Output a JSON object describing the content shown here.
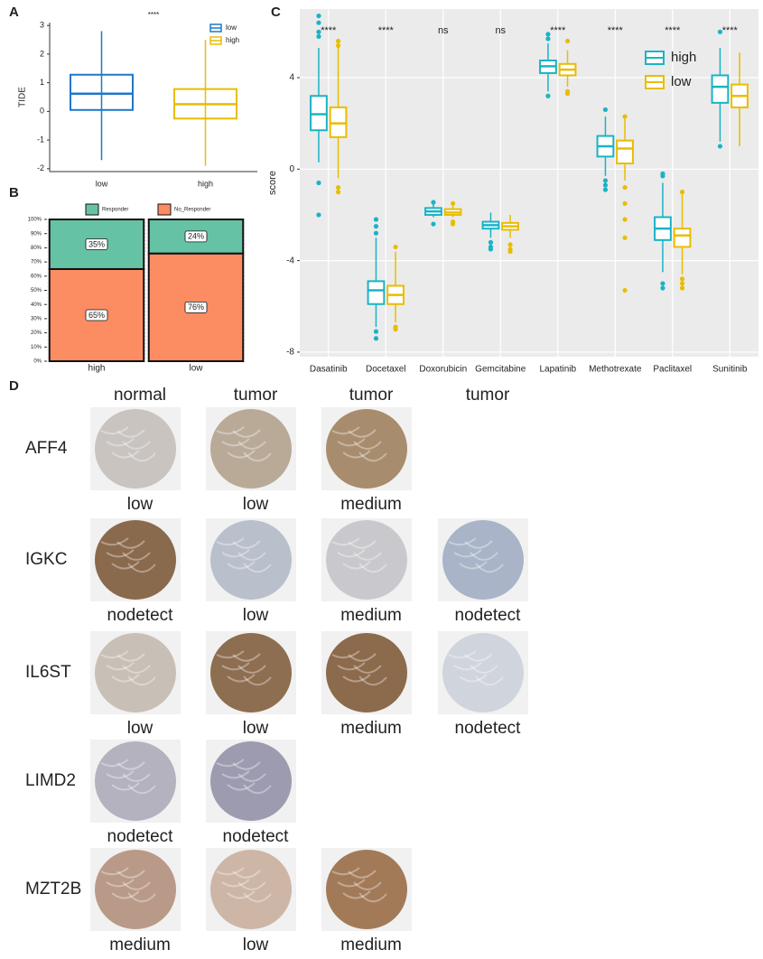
{
  "chart_data": [
    {
      "type": "box",
      "panel": "A",
      "ylabel": "TIDE",
      "annotation": "****",
      "dodge": false,
      "categories": [
        "low",
        "high"
      ],
      "series": [
        {
          "name": "low",
          "color": "#1f78c8",
          "values": [
            [
              -1.7,
              0.05,
              0.62,
              1.28,
              2.8
            ],
            null
          ],
          "outliers": [
            [],
            null
          ]
        },
        {
          "name": "high",
          "color": "#e8bd00",
          "values": [
            null,
            [
              -1.9,
              -0.25,
              0.25,
              0.78,
              2.5
            ]
          ],
          "outliers": [
            null,
            []
          ]
        }
      ],
      "ylim": [
        -2.1,
        3.1
      ],
      "yticks": [
        -2,
        -1,
        0,
        1,
        2,
        3
      ],
      "grid": false,
      "legend": "top-right"
    },
    {
      "type": "stacked_bar",
      "panel": "B",
      "categories": [
        "high",
        "low"
      ],
      "series": [
        {
          "name": "No_Responder",
          "color": "#fc8d62",
          "values": [
            65,
            76
          ],
          "value_labels": [
            "65%",
            "76%"
          ]
        },
        {
          "name": "Responder",
          "color": "#66c2a5",
          "values": [
            35,
            24
          ],
          "value_labels": [
            "35%",
            "24%"
          ]
        }
      ],
      "ylim": [
        0,
        100
      ],
      "yticks": [
        {
          "value": 0,
          "label": "0%"
        },
        {
          "value": 10,
          "label": "10%"
        },
        {
          "value": 20,
          "label": "20%"
        },
        {
          "value": 30,
          "label": "30%"
        },
        {
          "value": 40,
          "label": "40%"
        },
        {
          "value": 50,
          "label": "50%"
        },
        {
          "value": 60,
          "label": "60%"
        },
        {
          "value": 70,
          "label": "70%"
        },
        {
          "value": 80,
          "label": "80%"
        },
        {
          "value": 90,
          "label": "90%"
        },
        {
          "value": 100,
          "label": "100%"
        }
      ],
      "grid": true,
      "legend": "top"
    },
    {
      "type": "box",
      "panel": "C",
      "ylabel": "score",
      "dodge": true,
      "categories": [
        "Dasatinib",
        "Docetaxel",
        "Doxorubicin",
        "Gemcitabine",
        "Lapatinib",
        "Methotrexate",
        "Paclitaxel",
        "Sunitinib"
      ],
      "annotations": [
        "****",
        "****",
        "ns",
        "ns",
        "****",
        "****",
        "****",
        "****"
      ],
      "series": [
        {
          "name": "high",
          "color": "#1ab3c6",
          "values": [
            [
              0.3,
              1.7,
              2.4,
              3.2,
              5.3
            ],
            [
              -6.9,
              -5.9,
              -5.3,
              -4.9,
              -3.0
            ],
            [
              -2.1,
              -2.0,
              -1.85,
              -1.7,
              -1.5
            ],
            [
              -3.0,
              -2.6,
              -2.45,
              -2.3,
              -1.9
            ],
            [
              3.4,
              4.2,
              4.5,
              4.75,
              5.5
            ],
            [
              -0.3,
              0.55,
              1.0,
              1.45,
              2.3
            ],
            [
              -4.5,
              -3.1,
              -2.6,
              -2.1,
              -0.6
            ],
            [
              1.2,
              2.9,
              3.6,
              4.1,
              5.3
            ]
          ],
          "outliers": [
            [
              6.7,
              6.4,
              6.0,
              5.8,
              -0.6,
              -2.0
            ],
            [
              -2.2,
              -2.5,
              -2.8,
              -7.1,
              -7.4
            ],
            [
              -2.4,
              -1.45
            ],
            [
              -3.2,
              -3.4,
              -3.5
            ],
            [
              5.9,
              5.7,
              3.2
            ],
            [
              2.6,
              -0.5,
              -0.7,
              -0.9
            ],
            [
              -0.2,
              -0.3,
              -5.0,
              -5.2
            ],
            [
              6.0,
              1.0
            ]
          ]
        },
        {
          "name": "low",
          "color": "#e8bd00",
          "values": [
            [
              -0.4,
              1.4,
              2.0,
              2.7,
              5.3
            ],
            [
              -6.7,
              -5.9,
              -5.5,
              -5.1,
              -3.6
            ],
            [
              -2.1,
              -2.0,
              -1.9,
              -1.75,
              -1.6
            ],
            [
              -3.0,
              -2.65,
              -2.5,
              -2.35,
              -2.0
            ],
            [
              3.6,
              4.1,
              4.35,
              4.6,
              5.2
            ],
            [
              -0.5,
              0.25,
              0.9,
              1.25,
              2.2
            ],
            [
              -4.6,
              -3.4,
              -2.9,
              -2.6,
              -1.1
            ],
            [
              1.0,
              2.7,
              3.2,
              3.7,
              5.1
            ]
          ],
          "outliers": [
            [
              5.6,
              5.4,
              -0.8,
              -1.0
            ],
            [
              -3.4,
              -6.9,
              -7.0
            ],
            [
              -2.3,
              -2.4,
              -1.5
            ],
            [
              -3.3,
              -3.5,
              -3.6
            ],
            [
              5.6,
              3.4,
              3.3
            ],
            [
              2.3,
              -0.8,
              -1.5,
              -2.2,
              -3.0,
              -5.3
            ],
            [
              -1.0,
              -4.8,
              -5.0,
              -5.2
            ],
            []
          ]
        }
      ],
      "ylim": [
        -8.2,
        7.0
      ],
      "yticks": [
        -8,
        -4,
        0,
        4
      ],
      "grid": true,
      "legend": "top-right"
    }
  ],
  "panel_d": {
    "label": "D",
    "columns": [
      "normal",
      "tumor",
      "tumor",
      "tumor"
    ],
    "rows": [
      {
        "gene": "AFF4",
        "cells": [
          {
            "level": "low",
            "color": "#c9c4c0"
          },
          {
            "level": "low",
            "color": "#b9aa98"
          },
          {
            "level": "medium",
            "color": "#a88c6e"
          }
        ]
      },
      {
        "gene": "IGKC",
        "cells": [
          {
            "level": "nodetect",
            "color": "#8a6a4c"
          },
          {
            "level": "low",
            "color": "#b9c0cc"
          },
          {
            "level": "medium",
            "color": "#c9c9cd"
          },
          {
            "level": "nodetect",
            "color": "#a9b4c8"
          }
        ]
      },
      {
        "gene": "IL6ST",
        "cells": [
          {
            "level": "low",
            "color": "#c8c0b6"
          },
          {
            "level": "low",
            "color": "#8e6e50"
          },
          {
            "level": "medium",
            "color": "#8c6a4c"
          },
          {
            "level": "nodetect",
            "color": "#d0d4dc"
          }
        ]
      },
      {
        "gene": "LIMD2",
        "cells": [
          {
            "level": "nodetect",
            "color": "#b4b2be"
          },
          {
            "level": "nodetect",
            "color": "#9d9bb0"
          }
        ]
      },
      {
        "gene": "MZT2B",
        "cells": [
          {
            "level": "medium",
            "color": "#b99a88"
          },
          {
            "level": "low",
            "color": "#cdb6a6"
          },
          {
            "level": "medium",
            "color": "#a27a58"
          }
        ]
      }
    ]
  }
}
